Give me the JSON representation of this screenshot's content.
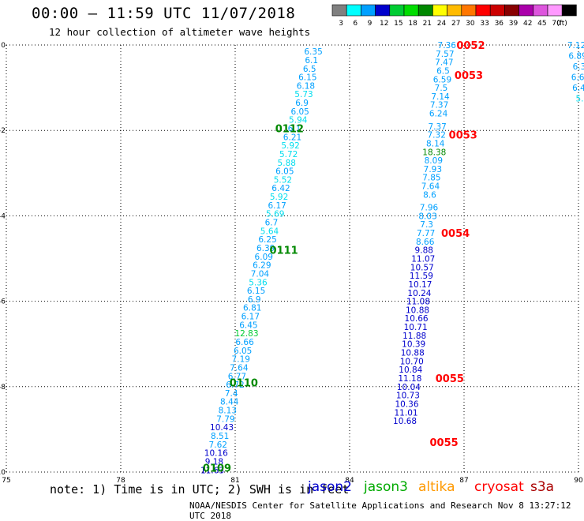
{
  "title": "00:00 – 11:59 UTC 11/07/2018",
  "subtitle": "12 hour collection of altimeter wave heights",
  "note": "note: 1) Time is in UTC; 2) SWH is in feet",
  "credit": "NOAA/NESDIS Center for Satellite Applications and Research   Nov  8 13:27:12 UTC 2018",
  "colorbar": {
    "unit_label": "(ft)",
    "bins": [
      {
        "label": "3",
        "color": "#808080"
      },
      {
        "label": "6",
        "color": "#00ffff"
      },
      {
        "label": "9",
        "color": "#00a0ff"
      },
      {
        "label": "12",
        "color": "#0000cc"
      },
      {
        "label": "15",
        "color": "#00cc33"
      },
      {
        "label": "18",
        "color": "#00dd00"
      },
      {
        "label": "21",
        "color": "#008800"
      },
      {
        "label": "24",
        "color": "#ffff00"
      },
      {
        "label": "27",
        "color": "#ffbb00"
      },
      {
        "label": "30",
        "color": "#ff7700"
      },
      {
        "label": "33",
        "color": "#ff0000"
      },
      {
        "label": "36",
        "color": "#cc0000"
      },
      {
        "label": "39",
        "color": "#880000"
      },
      {
        "label": "42",
        "color": "#aa00aa"
      },
      {
        "label": "45",
        "color": "#dd55dd"
      },
      {
        "label": "70",
        "color": "#ff99ff"
      },
      {
        "label": "",
        "color": "#000000"
      }
    ]
  },
  "legend": [
    {
      "name": "jason2",
      "color": "#0000cc"
    },
    {
      "name": "jason3",
      "color": "#00aa00"
    },
    {
      "name": "altika",
      "color": "#ff9900"
    },
    {
      "name": "cryosat",
      "color": "#ff0000"
    },
    {
      "name": "s3a",
      "color": "#aa0000"
    }
  ],
  "chart_data": {
    "type": "scatter",
    "xlabel": "",
    "ylabel": "",
    "xlim": [
      75,
      90
    ],
    "ylim": [
      -10,
      0
    ],
    "xticks": [
      75,
      78,
      81,
      84,
      87,
      90
    ],
    "yticks": [
      0,
      -2,
      -4,
      -6,
      -8,
      -10
    ],
    "grid": true,
    "color_bins": [
      {
        "max": 3,
        "color": "#808080"
      },
      {
        "max": 6,
        "color": "#00ddee"
      },
      {
        "max": 9,
        "color": "#00a0ff"
      },
      {
        "max": 12,
        "color": "#0000cc"
      },
      {
        "max": 15,
        "color": "#00cc33"
      },
      {
        "max": 18,
        "color": "#00dd00"
      },
      {
        "max": 21,
        "color": "#008800"
      }
    ],
    "track_label_color": "#008800",
    "track_label_color_alt": "#ff0000",
    "series": [
      {
        "track_labels": [
          {
            "text": "0112",
            "x": 82.05,
            "y": -1.95,
            "alt": false
          },
          {
            "text": "0111",
            "x": 81.9,
            "y": -4.8,
            "alt": false
          },
          {
            "text": "0110",
            "x": 80.85,
            "y": -7.9,
            "alt": false
          },
          {
            "text": "0109",
            "x": 80.15,
            "y": -9.9,
            "alt": false
          }
        ],
        "values": [
          6.35,
          6.1,
          6.5,
          6.15,
          6.18,
          5.73,
          6.9,
          6.05,
          5.94,
          6.1,
          6.21,
          5.92,
          5.72,
          5.88,
          6.05,
          5.52,
          6.42,
          5.92,
          6.17,
          5.69,
          6.7,
          5.64,
          6.25,
          6.39,
          6.09,
          6.29,
          7.04,
          5.36,
          6.15,
          6.9,
          6.81,
          6.17,
          6.45,
          12.83,
          6.66,
          6.05,
          7.19,
          7.64,
          6.77,
          6.72,
          7.4,
          8.44,
          8.13,
          7.79,
          10.43,
          8.51,
          7.62,
          10.16,
          9.18,
          11.63
        ],
        "x": [
          83.05,
          83.0,
          82.95,
          82.9,
          82.85,
          82.8,
          82.75,
          82.7,
          82.65,
          82.55,
          82.5,
          82.45,
          82.4,
          82.35,
          82.3,
          82.25,
          82.2,
          82.15,
          82.1,
          82.05,
          81.95,
          81.9,
          81.85,
          81.8,
          81.75,
          81.7,
          81.65,
          81.6,
          81.55,
          81.5,
          81.45,
          81.4,
          81.35,
          81.3,
          81.25,
          81.2,
          81.15,
          81.1,
          81.05,
          81.0,
          80.9,
          80.85,
          80.8,
          80.75,
          80.65,
          80.6,
          80.55,
          80.5,
          80.45,
          80.4
        ],
        "y": [
          -0.15,
          -0.35,
          -0.55,
          -0.75,
          -0.95,
          -1.15,
          -1.35,
          -1.55,
          -1.75,
          -1.95,
          -2.15,
          -2.35,
          -2.55,
          -2.75,
          -2.95,
          -3.15,
          -3.35,
          -3.55,
          -3.75,
          -3.95,
          -4.15,
          -4.35,
          -4.55,
          -4.75,
          -4.95,
          -5.15,
          -5.35,
          -5.55,
          -5.75,
          -5.95,
          -6.15,
          -6.35,
          -6.55,
          -6.75,
          -6.95,
          -7.15,
          -7.35,
          -7.55,
          -7.75,
          -7.95,
          -8.15,
          -8.35,
          -8.55,
          -8.75,
          -8.95,
          -9.15,
          -9.35,
          -9.55,
          -9.75,
          -9.95
        ]
      },
      {
        "track_labels": [
          {
            "text": "0052",
            "x": 86.8,
            "y": 0.0,
            "alt": true
          },
          {
            "text": "0053",
            "x": 86.75,
            "y": -0.7,
            "alt": true
          },
          {
            "text": "0053",
            "x": 86.6,
            "y": -2.1,
            "alt": true
          },
          {
            "text": "0054",
            "x": 86.4,
            "y": -4.4,
            "alt": true
          },
          {
            "text": "0055",
            "x": 86.25,
            "y": -7.8,
            "alt": true
          },
          {
            "text": "0055",
            "x": 86.1,
            "y": -9.3,
            "alt": true
          }
        ],
        "values": [
          7.36,
          7.57,
          7.47,
          6.5,
          6.59,
          7.5,
          7.14,
          7.37,
          6.24,
          7.37,
          7.32,
          8.14,
          18.38,
          8.09,
          7.93,
          7.85,
          7.64,
          8.6,
          7.96,
          8.03,
          7.3,
          7.77,
          8.66,
          9.88,
          11.07,
          10.57,
          11.59,
          10.17,
          10.24,
          11.08,
          10.88,
          10.66,
          10.71,
          11.88,
          10.39,
          10.88,
          10.7,
          10.84,
          11.18,
          10.04,
          10.73,
          10.36,
          11.01,
          10.68
        ],
        "x": [
          86.55,
          86.5,
          86.48,
          86.45,
          86.43,
          86.4,
          86.38,
          86.35,
          86.33,
          86.3,
          86.28,
          86.25,
          86.22,
          86.2,
          86.18,
          86.15,
          86.12,
          86.1,
          86.08,
          86.05,
          86.02,
          86.0,
          85.98,
          85.95,
          85.93,
          85.9,
          85.88,
          85.85,
          85.83,
          85.8,
          85.78,
          85.75,
          85.73,
          85.7,
          85.68,
          85.65,
          85.63,
          85.6,
          85.58,
          85.55,
          85.53,
          85.5,
          85.48,
          85.45
        ],
        "y": [
          0.0,
          -0.2,
          -0.4,
          -0.6,
          -0.8,
          -1.0,
          -1.2,
          -1.4,
          -1.6,
          -1.9,
          -2.1,
          -2.3,
          -2.5,
          -2.7,
          -2.9,
          -3.1,
          -3.3,
          -3.5,
          -3.8,
          -4.0,
          -4.2,
          -4.4,
          -4.6,
          -4.8,
          -5.0,
          -5.2,
          -5.4,
          -5.6,
          -5.8,
          -6.0,
          -6.2,
          -6.4,
          -6.6,
          -6.8,
          -7.0,
          -7.2,
          -7.4,
          -7.6,
          -7.8,
          -8.0,
          -8.2,
          -8.4,
          -8.6,
          -8.8
        ]
      },
      {
        "track_labels": [],
        "values": [
          7.12,
          6.89,
          6.3,
          6.64,
          6.44,
          5.8
        ],
        "x": [
          89.95,
          89.98,
          90.02,
          90.05,
          90.08,
          90.1
        ],
        "y": [
          0.0,
          -0.25,
          -0.5,
          -0.75,
          -1.0,
          -1.25
        ]
      }
    ]
  }
}
